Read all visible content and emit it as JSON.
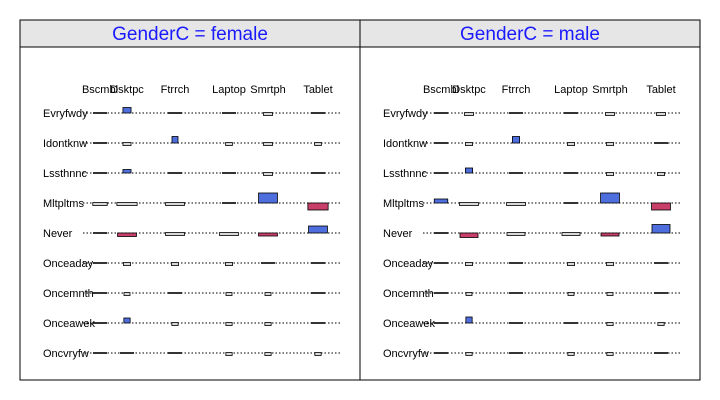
{
  "chart_data": {
    "type": "table",
    "plot_type": "mosaic-residual",
    "panels": [
      {
        "variable": "GenderC",
        "level": "female",
        "title": "GenderC = female"
      },
      {
        "variable": "GenderC",
        "level": "male",
        "title": "GenderC = male"
      }
    ],
    "columns": [
      "Bscmbl",
      "Dsktpc",
      "Ftrrch",
      "Laptop",
      "Smrtph",
      "Tablet"
    ],
    "rows": [
      "Evryfwdy",
      "Idontknw",
      "Lssthnnc",
      "Mltpltms",
      "Never",
      "Onceaday",
      "Oncemnth",
      "Onceawek",
      "Oncvryfw"
    ],
    "colors": {
      "positive": "#4f6ede",
      "negative": "#c8406a",
      "neutral": "#d8d8d8",
      "strip_bg": "#e6e6e6",
      "strip_text": "#1a1aff"
    },
    "cells": {
      "female": [
        [
          [
            0.0,
            0.02,
            "n"
          ],
          [
            0.18,
            0.55,
            "p"
          ],
          [
            0.12,
            0.02,
            "n"
          ],
          [
            0.15,
            0.02,
            "n"
          ],
          [
            0.2,
            0.25,
            "g"
          ],
          [
            0.15,
            0.02,
            "n"
          ]
        ],
        [
          [
            0.0,
            0.02,
            "n"
          ],
          [
            0.18,
            0.2,
            "g"
          ],
          [
            0.12,
            0.65,
            "p"
          ],
          [
            0.15,
            0.3,
            "g"
          ],
          [
            0.2,
            0.35,
            "g"
          ],
          [
            0.15,
            0.2,
            "g"
          ]
        ],
        [
          [
            0.0,
            0.02,
            "n"
          ],
          [
            0.18,
            0.35,
            "p"
          ],
          [
            0.12,
            0.02,
            "n"
          ],
          [
            0.15,
            0.02,
            "n"
          ],
          [
            0.2,
            0.3,
            "g"
          ],
          [
            0.15,
            0.02,
            "n"
          ]
        ],
        [
          [
            0.32,
            0.1,
            "g"
          ],
          [
            0.45,
            0.3,
            "g"
          ],
          [
            0.42,
            0.3,
            "g"
          ],
          [
            0.45,
            0.05,
            "n"
          ],
          [
            0.42,
            1.0,
            "p"
          ],
          [
            0.45,
            0.7,
            "neg"
          ]
        ],
        [
          [
            0.32,
            0.02,
            "n"
          ],
          [
            0.42,
            0.35,
            "neg"
          ],
          [
            0.42,
            0.3,
            "g"
          ],
          [
            0.42,
            0.25,
            "g"
          ],
          [
            0.42,
            0.3,
            "neg"
          ],
          [
            0.42,
            0.7,
            "p"
          ]
        ],
        [
          [
            0.0,
            0.02,
            "n"
          ],
          [
            0.16,
            0.25,
            "g"
          ],
          [
            0.16,
            0.25,
            "g"
          ],
          [
            0.16,
            0.35,
            "g"
          ],
          [
            0.16,
            0.02,
            "n"
          ],
          [
            0.16,
            0.02,
            "n"
          ]
        ],
        [
          [
            0.0,
            0.02,
            "n"
          ],
          [
            0.1,
            0.35,
            "g"
          ],
          [
            0.1,
            0.02,
            "n"
          ],
          [
            0.1,
            0.5,
            "g"
          ],
          [
            0.1,
            0.2,
            "g"
          ],
          [
            0.1,
            0.02,
            "n"
          ]
        ],
        [
          [
            0.0,
            0.02,
            "n"
          ],
          [
            0.14,
            0.5,
            "p"
          ],
          [
            0.14,
            0.2,
            "g"
          ],
          [
            0.14,
            0.2,
            "g"
          ],
          [
            0.14,
            0.4,
            "g"
          ],
          [
            0.14,
            0.02,
            "n"
          ]
        ],
        [
          [
            0.0,
            0.02,
            "n"
          ],
          [
            0.14,
            0.02,
            "n"
          ],
          [
            0.14,
            0.02,
            "n"
          ],
          [
            0.14,
            0.25,
            "g"
          ],
          [
            0.14,
            0.25,
            "g"
          ],
          [
            0.14,
            0.2,
            "g"
          ]
        ]
      ],
      "male": [
        [
          [
            0.0,
            0.02,
            "n"
          ],
          [
            0.2,
            0.45,
            "g"
          ],
          [
            0.2,
            0.02,
            "n"
          ],
          [
            0.2,
            0.02,
            "n"
          ],
          [
            0.2,
            0.25,
            "g"
          ],
          [
            0.2,
            0.25,
            "g"
          ]
        ],
        [
          [
            0.0,
            0.02,
            "n"
          ],
          [
            0.16,
            0.25,
            "g"
          ],
          [
            0.16,
            0.65,
            "p"
          ],
          [
            0.16,
            0.25,
            "g"
          ],
          [
            0.16,
            0.25,
            "g"
          ],
          [
            0.16,
            0.02,
            "n"
          ]
        ],
        [
          [
            0.0,
            0.02,
            "n"
          ],
          [
            0.16,
            0.5,
            "p"
          ],
          [
            0.16,
            0.02,
            "n"
          ],
          [
            0.16,
            0.02,
            "n"
          ],
          [
            0.16,
            0.35,
            "g"
          ],
          [
            0.16,
            0.3,
            "g"
          ]
        ],
        [
          [
            0.3,
            0.4,
            "p"
          ],
          [
            0.42,
            0.3,
            "g"
          ],
          [
            0.42,
            0.3,
            "g"
          ],
          [
            0.42,
            0.05,
            "n"
          ],
          [
            0.42,
            1.0,
            "p"
          ],
          [
            0.42,
            0.7,
            "neg"
          ]
        ],
        [
          [
            0.3,
            0.02,
            "n"
          ],
          [
            0.4,
            0.45,
            "neg"
          ],
          [
            0.4,
            0.3,
            "g"
          ],
          [
            0.4,
            0.25,
            "g"
          ],
          [
            0.4,
            0.3,
            "neg"
          ],
          [
            0.4,
            0.85,
            "p"
          ]
        ],
        [
          [
            0.0,
            0.02,
            "n"
          ],
          [
            0.16,
            0.35,
            "g"
          ],
          [
            0.16,
            0.02,
            "n"
          ],
          [
            0.16,
            0.35,
            "g"
          ],
          [
            0.16,
            0.3,
            "g"
          ],
          [
            0.16,
            0.02,
            "n"
          ]
        ],
        [
          [
            0.0,
            0.02,
            "n"
          ],
          [
            0.1,
            0.3,
            "g"
          ],
          [
            0.1,
            0.02,
            "n"
          ],
          [
            0.1,
            0.3,
            "g"
          ],
          [
            0.1,
            0.3,
            "g"
          ],
          [
            0.1,
            0.02,
            "n"
          ]
        ],
        [
          [
            0.0,
            0.02,
            "n"
          ],
          [
            0.14,
            0.6,
            "p"
          ],
          [
            0.14,
            0.02,
            "n"
          ],
          [
            0.14,
            0.02,
            "n"
          ],
          [
            0.14,
            0.4,
            "g"
          ],
          [
            0.14,
            0.35,
            "g"
          ]
        ],
        [
          [
            0.0,
            0.02,
            "n"
          ],
          [
            0.14,
            0.45,
            "g"
          ],
          [
            0.14,
            0.02,
            "n"
          ],
          [
            0.14,
            0.3,
            "g"
          ],
          [
            0.14,
            0.25,
            "g"
          ],
          [
            0.14,
            0.02,
            "n"
          ]
        ]
      ]
    }
  }
}
